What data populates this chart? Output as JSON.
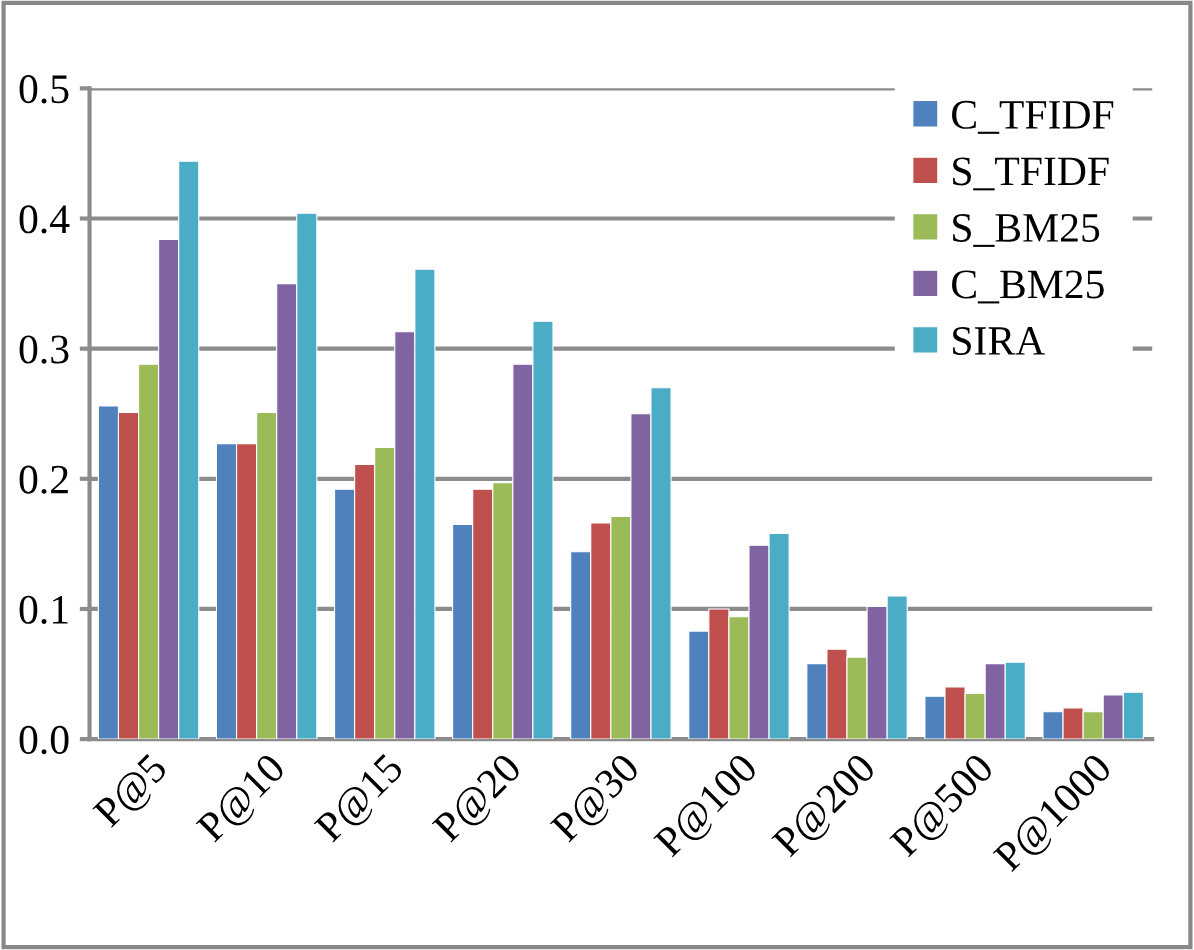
{
  "chart_data": {
    "type": "bar",
    "categories": [
      "P@5",
      "P@10",
      "P@15",
      "P@20",
      "P@30",
      "P@100",
      "P@200",
      "P@500",
      "P@1000"
    ],
    "series": [
      {
        "name": "C_TFIDF",
        "color": "#4f81bd",
        "values": [
          0.256,
          0.227,
          0.192,
          0.165,
          0.144,
          0.083,
          0.058,
          0.033,
          0.021
        ]
      },
      {
        "name": "S_TFIDF",
        "color": "#c0504d",
        "values": [
          0.251,
          0.227,
          0.211,
          0.192,
          0.166,
          0.1,
          0.069,
          0.04,
          0.024
        ]
      },
      {
        "name": "S_BM25",
        "color": "#9bbb59",
        "values": [
          0.288,
          0.251,
          0.224,
          0.197,
          0.171,
          0.094,
          0.063,
          0.035,
          0.021
        ]
      },
      {
        "name": "C_BM25",
        "color": "#8064a2",
        "values": [
          0.384,
          0.35,
          0.313,
          0.288,
          0.25,
          0.149,
          0.102,
          0.058,
          0.034
        ]
      },
      {
        "name": "SIRA",
        "color": "#4bacc6",
        "values": [
          0.444,
          0.404,
          0.361,
          0.321,
          0.27,
          0.158,
          0.11,
          0.059,
          0.036
        ]
      }
    ],
    "ylim": [
      0,
      0.5
    ],
    "yticks": [
      {
        "value": 0,
        "label": "0.0"
      },
      {
        "value": 0.1,
        "label": "0.1"
      },
      {
        "value": 0.2,
        "label": "0.2"
      },
      {
        "value": 0.3,
        "label": "0.3"
      },
      {
        "value": 0.4,
        "label": "0.4"
      },
      {
        "value": 0.5,
        "label": "0.5"
      }
    ],
    "grid": "y",
    "legend": "right"
  }
}
